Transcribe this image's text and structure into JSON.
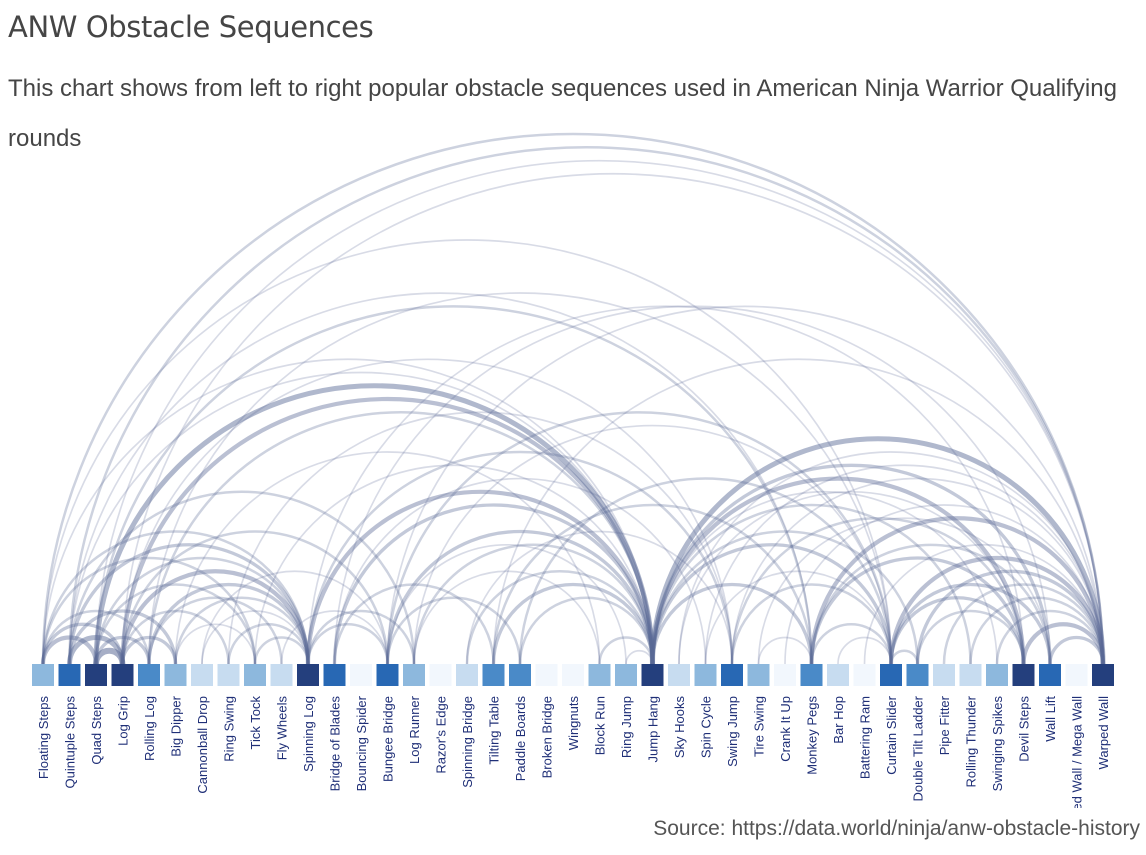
{
  "title": "ANW Obstacle Sequences",
  "subtitle": "This chart shows from left to right popular obstacle sequences used in American Ninja Warrior Qualifying rounds",
  "source": "Source: https://data.world/ninja/anw-obstacle-history",
  "colors": {
    "arc": "#5a6a96",
    "node_scale": [
      "#f2f7fd",
      "#c7dcf0",
      "#8db8dd",
      "#4a8ac8",
      "#2868b4",
      "#243f7d"
    ]
  },
  "chart_data": {
    "type": "arc",
    "title": "ANW Obstacle Sequences",
    "nodes": [
      {
        "name": "Floating Steps",
        "weight": 2
      },
      {
        "name": "Quintuple Steps",
        "weight": 4
      },
      {
        "name": "Quad Steps",
        "weight": 5
      },
      {
        "name": "Log Grip",
        "weight": 5
      },
      {
        "name": "Rolling Log",
        "weight": 3
      },
      {
        "name": "Big Dipper",
        "weight": 2
      },
      {
        "name": "Cannonball Drop",
        "weight": 1
      },
      {
        "name": "Ring Swing",
        "weight": 1
      },
      {
        "name": "Tick Tock",
        "weight": 2
      },
      {
        "name": "Fly Wheels",
        "weight": 1
      },
      {
        "name": "Spinning Log",
        "weight": 5
      },
      {
        "name": "Bridge of Blades",
        "weight": 4
      },
      {
        "name": "Bouncing Spider",
        "weight": 0
      },
      {
        "name": "Bungee Bridge",
        "weight": 4
      },
      {
        "name": "Log Runner",
        "weight": 2
      },
      {
        "name": "Razor's Edge",
        "weight": 0
      },
      {
        "name": "Spinning Bridge",
        "weight": 1
      },
      {
        "name": "Tilting Table",
        "weight": 3
      },
      {
        "name": "Paddle Boards",
        "weight": 3
      },
      {
        "name": "Broken Bridge",
        "weight": 0
      },
      {
        "name": "Wingnuts",
        "weight": 0
      },
      {
        "name": "Block Run",
        "weight": 2
      },
      {
        "name": "Ring Jump",
        "weight": 2
      },
      {
        "name": "Jump Hang",
        "weight": 5
      },
      {
        "name": "Sky Hooks",
        "weight": 1
      },
      {
        "name": "Spin Cycle",
        "weight": 2
      },
      {
        "name": "Swing Jump",
        "weight": 4
      },
      {
        "name": "Tire Swing",
        "weight": 2
      },
      {
        "name": "Crank It Up",
        "weight": 0
      },
      {
        "name": "Monkey Pegs",
        "weight": 3
      },
      {
        "name": "Bar Hop",
        "weight": 1
      },
      {
        "name": "Battering Ram",
        "weight": 0
      },
      {
        "name": "Curtain Slider",
        "weight": 4
      },
      {
        "name": "Double Tilt Ladder",
        "weight": 3
      },
      {
        "name": "Pipe Fitter",
        "weight": 1
      },
      {
        "name": "Rolling Thunder",
        "weight": 1
      },
      {
        "name": "Swinging Spikes",
        "weight": 2
      },
      {
        "name": "Devil Steps",
        "weight": 5
      },
      {
        "name": "Wall Lift",
        "weight": 4
      },
      {
        "name": "Warped Wall / Mega Wall",
        "weight": 0
      },
      {
        "name": "Warped Wall",
        "weight": 5
      }
    ],
    "links": [
      [
        "Floating Steps",
        "Warped Wall",
        2
      ],
      [
        "Floating Steps",
        "Jump Hang",
        1
      ],
      [
        "Floating Steps",
        "Spinning Log",
        2
      ],
      [
        "Floating Steps",
        "Log Grip",
        3
      ],
      [
        "Floating Steps",
        "Quad Steps",
        4
      ],
      [
        "Floating Steps",
        "Rolling Log",
        2
      ],
      [
        "Floating Steps",
        "Tick Tock",
        2
      ],
      [
        "Floating Steps",
        "Curtain Slider",
        1
      ],
      [
        "Quintuple Steps",
        "Warped Wall",
        2
      ],
      [
        "Quintuple Steps",
        "Jump Hang",
        1
      ],
      [
        "Quintuple Steps",
        "Monkey Pegs",
        1
      ],
      [
        "Quintuple Steps",
        "Log Grip",
        5
      ],
      [
        "Quintuple Steps",
        "Big Dipper",
        3
      ],
      [
        "Quintuple Steps",
        "Spinning Log",
        3
      ],
      [
        "Quintuple Steps",
        "Log Runner",
        2
      ],
      [
        "Quad Steps",
        "Jump Hang",
        5
      ],
      [
        "Quad Steps",
        "Monkey Pegs",
        2
      ],
      [
        "Quad Steps",
        "Log Grip",
        6
      ],
      [
        "Quad Steps",
        "Rolling Log",
        3
      ],
      [
        "Quad Steps",
        "Spinning Log",
        2
      ],
      [
        "Quad Steps",
        "Tick Tock",
        2
      ],
      [
        "Quad Steps",
        "Warped Wall",
        1
      ],
      [
        "Log Grip",
        "Jump Hang",
        4
      ],
      [
        "Log Grip",
        "Spinning Log",
        4
      ],
      [
        "Log Grip",
        "Big Dipper",
        3
      ],
      [
        "Log Grip",
        "Ring Swing",
        2
      ],
      [
        "Log Grip",
        "Bungee Bridge",
        2
      ],
      [
        "Log Grip",
        "Swing Jump",
        1
      ],
      [
        "Log Grip",
        "Warped Wall",
        1
      ],
      [
        "Rolling Log",
        "Spinning Log",
        3
      ],
      [
        "Rolling Log",
        "Fly Wheels",
        2
      ],
      [
        "Rolling Log",
        "Jump Hang",
        2
      ],
      [
        "Rolling Log",
        "Curtain Slider",
        1
      ],
      [
        "Big Dipper",
        "Spinning Log",
        2
      ],
      [
        "Big Dipper",
        "Tick Tock",
        1
      ],
      [
        "Big Dipper",
        "Block Run",
        1
      ],
      [
        "Cannonball Drop",
        "Spinning Log",
        1
      ],
      [
        "Cannonball Drop",
        "Bungee Bridge",
        1
      ],
      [
        "Ring Swing",
        "Spinning Log",
        2
      ],
      [
        "Ring Swing",
        "Swing Jump",
        1
      ],
      [
        "Tick Tock",
        "Spinning Log",
        2
      ],
      [
        "Tick Tock",
        "Jump Hang",
        1
      ],
      [
        "Fly Wheels",
        "Bungee Bridge",
        1
      ],
      [
        "Spinning Log",
        "Jump Hang",
        4
      ],
      [
        "Spinning Log",
        "Bungee Bridge",
        2
      ],
      [
        "Spinning Log",
        "Log Runner",
        2
      ],
      [
        "Spinning Log",
        "Swing Jump",
        2
      ],
      [
        "Spinning Log",
        "Devil Steps",
        1
      ],
      [
        "Bridge of Blades",
        "Jump Hang",
        3
      ],
      [
        "Bridge of Blades",
        "Tilting Table",
        2
      ],
      [
        "Bridge of Blades",
        "Spin Cycle",
        1
      ],
      [
        "Bridge of Blades",
        "Wall Lift",
        1
      ],
      [
        "Bungee Bridge",
        "Jump Hang",
        3
      ],
      [
        "Bungee Bridge",
        "Paddle Boards",
        2
      ],
      [
        "Bungee Bridge",
        "Ring Jump",
        1
      ],
      [
        "Bungee Bridge",
        "Curtain Slider",
        2
      ],
      [
        "Bungee Bridge",
        "Warped Wall",
        1
      ],
      [
        "Log Runner",
        "Jump Hang",
        2
      ],
      [
        "Log Runner",
        "Block Run",
        1
      ],
      [
        "Log Runner",
        "Curtain Slider",
        1
      ],
      [
        "Spinning Bridge",
        "Jump Hang",
        2
      ],
      [
        "Spinning Bridge",
        "Swing Jump",
        1
      ],
      [
        "Tilting Table",
        "Jump Hang",
        3
      ],
      [
        "Tilting Table",
        "Monkey Pegs",
        2
      ],
      [
        "Tilting Table",
        "Warped Wall",
        1
      ],
      [
        "Paddle Boards",
        "Jump Hang",
        2
      ],
      [
        "Paddle Boards",
        "Curtain Slider",
        2
      ],
      [
        "Block Run",
        "Jump Hang",
        2
      ],
      [
        "Ring Jump",
        "Jump Hang",
        1
      ],
      [
        "Jump Hang",
        "Monkey Pegs",
        3
      ],
      [
        "Jump Hang",
        "Curtain Slider",
        3
      ],
      [
        "Jump Hang",
        "Devil Steps",
        4
      ],
      [
        "Jump Hang",
        "Wall Lift",
        3
      ],
      [
        "Jump Hang",
        "Warped Wall",
        5
      ],
      [
        "Jump Hang",
        "Double Tilt Ladder",
        2
      ],
      [
        "Jump Hang",
        "Rolling Thunder",
        2
      ],
      [
        "Jump Hang",
        "Swinging Spikes",
        1
      ],
      [
        "Sky Hooks",
        "Devil Steps",
        1
      ],
      [
        "Sky Hooks",
        "Warped Wall",
        1
      ],
      [
        "Spin Cycle",
        "Curtain Slider",
        1
      ],
      [
        "Spin Cycle",
        "Warped Wall",
        1
      ],
      [
        "Swing Jump",
        "Curtain Slider",
        2
      ],
      [
        "Swing Jump",
        "Devil Steps",
        2
      ],
      [
        "Swing Jump",
        "Warped Wall",
        1
      ],
      [
        "Tire Swing",
        "Monkey Pegs",
        1
      ],
      [
        "Tire Swing",
        "Wall Lift",
        1
      ],
      [
        "Monkey Pegs",
        "Warped Wall",
        4
      ],
      [
        "Monkey Pegs",
        "Devil Steps",
        3
      ],
      [
        "Monkey Pegs",
        "Curtain Slider",
        2
      ],
      [
        "Monkey Pegs",
        "Wall Lift",
        2
      ],
      [
        "Bar Hop",
        "Curtain Slider",
        1
      ],
      [
        "Curtain Slider",
        "Warped Wall",
        4
      ],
      [
        "Curtain Slider",
        "Devil Steps",
        3
      ],
      [
        "Curtain Slider",
        "Double Tilt Ladder",
        2
      ],
      [
        "Curtain Slider",
        "Wall Lift",
        3
      ],
      [
        "Double Tilt Ladder",
        "Warped Wall",
        3
      ],
      [
        "Double Tilt Ladder",
        "Devil Steps",
        2
      ],
      [
        "Pipe Fitter",
        "Warped Wall",
        2
      ],
      [
        "Rolling Thunder",
        "Warped Wall",
        2
      ],
      [
        "Swinging Spikes",
        "Warped Wall",
        2
      ],
      [
        "Devil Steps",
        "Warped Wall",
        4
      ],
      [
        "Wall Lift",
        "Warped Wall",
        3
      ],
      [
        "Battering Ram",
        "Warped Wall",
        1
      ],
      [
        "Crank It Up",
        "Warped Wall",
        1
      ]
    ]
  }
}
